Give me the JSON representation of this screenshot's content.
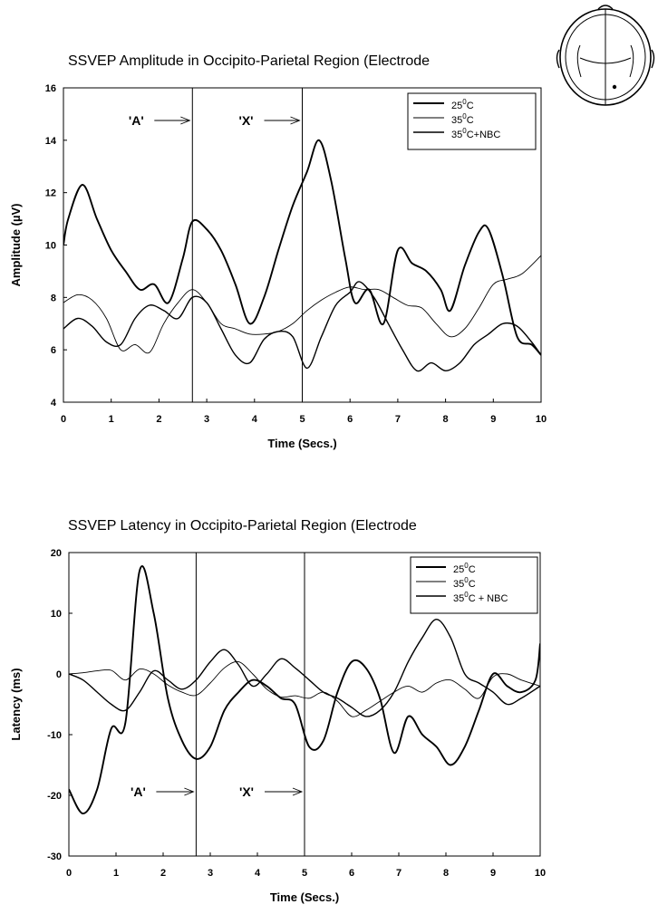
{
  "chart_data": [
    {
      "type": "line",
      "title": "SSVEP Amplitude in Occipito-Parietal Region (Electrode",
      "xlabel": "Time (Secs.)",
      "ylabel": "Amplitude (µV)",
      "xlim": [
        0,
        10
      ],
      "ylim": [
        4,
        16
      ],
      "xticks": [
        "0",
        "1",
        "2",
        "3",
        "4",
        "5",
        "6",
        "7",
        "8",
        "9",
        "10"
      ],
      "yticks": [
        "4",
        "6",
        "8",
        "10",
        "12",
        "14",
        "16"
      ],
      "grid": false,
      "legend_position": "top-right",
      "markers": [
        {
          "label": "'A'",
          "x": 2.7
        },
        {
          "label": "'X'",
          "x": 5.0
        }
      ],
      "series": [
        {
          "name": "25°C",
          "x": [
            0,
            0.1,
            0.4,
            0.7,
            1.0,
            1.3,
            1.6,
            1.9,
            2.2,
            2.5,
            2.7,
            3.0,
            3.3,
            3.6,
            3.9,
            4.2,
            4.5,
            4.8,
            5.1,
            5.35,
            5.6,
            5.9,
            6.1,
            6.4,
            6.7,
            7.0,
            7.3,
            7.6,
            7.9,
            8.1,
            8.4,
            8.7,
            8.9,
            9.2,
            9.5,
            9.8,
            10.0
          ],
          "y": [
            10.0,
            11.0,
            12.3,
            11.0,
            9.8,
            9.0,
            8.3,
            8.5,
            7.8,
            9.5,
            10.9,
            10.6,
            9.8,
            8.5,
            7.0,
            8.0,
            9.8,
            11.5,
            12.8,
            14.0,
            12.5,
            9.5,
            7.8,
            8.3,
            7.0,
            9.8,
            9.3,
            9.0,
            8.3,
            7.5,
            9.2,
            10.5,
            10.6,
            8.8,
            6.5,
            6.2,
            5.8
          ]
        },
        {
          "name": "35°C",
          "x": [
            0,
            0.3,
            0.6,
            0.9,
            1.2,
            1.5,
            1.8,
            2.1,
            2.4,
            2.7,
            3.0,
            3.3,
            3.6,
            3.9,
            4.2,
            4.5,
            4.8,
            5.1,
            5.4,
            5.7,
            6.0,
            6.3,
            6.6,
            6.9,
            7.2,
            7.5,
            7.8,
            8.1,
            8.4,
            8.7,
            9.0,
            9.3,
            9.6,
            10.0
          ],
          "y": [
            7.8,
            8.1,
            7.9,
            7.2,
            6.0,
            6.2,
            5.9,
            7.0,
            7.8,
            8.3,
            7.8,
            7.0,
            6.8,
            6.6,
            6.6,
            6.7,
            7.0,
            7.5,
            7.9,
            8.2,
            8.4,
            8.3,
            8.3,
            8.0,
            7.7,
            7.6,
            7.0,
            6.5,
            6.8,
            7.6,
            8.5,
            8.7,
            8.9,
            9.6
          ]
        },
        {
          "name": "35°C+NBC",
          "x": [
            0,
            0.3,
            0.6,
            0.9,
            1.2,
            1.5,
            1.8,
            2.1,
            2.4,
            2.7,
            3.0,
            3.3,
            3.6,
            3.9,
            4.2,
            4.5,
            4.8,
            5.1,
            5.4,
            5.7,
            6.0,
            6.2,
            6.5,
            6.8,
            7.1,
            7.4,
            7.7,
            8.0,
            8.3,
            8.6,
            8.9,
            9.2,
            9.5,
            9.8,
            10.0
          ],
          "y": [
            6.8,
            7.2,
            6.9,
            6.3,
            6.2,
            7.2,
            7.7,
            7.5,
            7.2,
            8.0,
            7.8,
            6.8,
            5.8,
            5.5,
            6.4,
            6.7,
            6.5,
            5.3,
            6.5,
            7.7,
            8.2,
            8.6,
            8.0,
            7.0,
            6.0,
            5.2,
            5.5,
            5.2,
            5.5,
            6.2,
            6.6,
            7.0,
            6.9,
            6.3,
            5.8
          ]
        }
      ]
    },
    {
      "type": "line",
      "title": "SSVEP Latency in Occipito-Parietal Region (Electrode",
      "xlabel": "Time (Secs.)",
      "ylabel": "Latency (ms)",
      "xlim": [
        0,
        10
      ],
      "ylim": [
        -30,
        20
      ],
      "xticks": [
        "0",
        "1",
        "2",
        "3",
        "4",
        "5",
        "6",
        "7",
        "8",
        "9",
        "10"
      ],
      "yticks": [
        "-30",
        "-20",
        "-10",
        "0",
        "10",
        "20"
      ],
      "grid": false,
      "legend_position": "top-right",
      "markers": [
        {
          "label": "'A'",
          "x": 2.7
        },
        {
          "label": "'X'",
          "x": 5.0
        }
      ],
      "series": [
        {
          "name": "25°C",
          "x": [
            0,
            0.3,
            0.6,
            0.9,
            1.2,
            1.5,
            1.8,
            2.1,
            2.4,
            2.7,
            3.0,
            3.3,
            3.6,
            3.9,
            4.2,
            4.5,
            4.8,
            5.1,
            5.4,
            5.7,
            6.0,
            6.3,
            6.6,
            6.9,
            7.2,
            7.5,
            7.8,
            8.1,
            8.4,
            8.7,
            9.0,
            9.3,
            9.6,
            9.9,
            10.0
          ],
          "y": [
            -19.0,
            -23.0,
            -19.0,
            -9.0,
            -8.0,
            17.0,
            10.0,
            -4.0,
            -11.0,
            -14.0,
            -12.0,
            -6.0,
            -3.0,
            -1.0,
            -2.0,
            -4.0,
            -5.0,
            -12.0,
            -11.0,
            -3.0,
            2.0,
            1.0,
            -4.0,
            -13.0,
            -7.0,
            -10.0,
            -12.0,
            -15.0,
            -12.0,
            -6.0,
            0.0,
            -2.0,
            -3.0,
            -1.0,
            5.0
          ]
        },
        {
          "name": "35°C",
          "x": [
            0,
            0.3,
            0.6,
            0.9,
            1.2,
            1.5,
            1.8,
            2.1,
            2.4,
            2.7,
            3.0,
            3.3,
            3.6,
            3.9,
            4.2,
            4.5,
            4.8,
            5.1,
            5.4,
            5.7,
            6.0,
            6.3,
            6.6,
            6.9,
            7.2,
            7.5,
            7.8,
            8.1,
            8.4,
            8.7,
            9.0,
            9.3,
            9.6,
            10.0
          ],
          "y": [
            0.0,
            0.2,
            0.5,
            0.6,
            -1.0,
            0.8,
            0.0,
            -1.8,
            -3.0,
            -3.5,
            -1.5,
            1.0,
            2.0,
            0.0,
            -2.5,
            -3.8,
            -3.6,
            -4.0,
            -3.0,
            -4.5,
            -7.0,
            -6.0,
            -4.5,
            -3.0,
            -2.0,
            -3.0,
            -1.5,
            -1.0,
            -2.5,
            -4.0,
            -0.5,
            0.0,
            -1.0,
            -2.0
          ]
        },
        {
          "name": "35°C + NBC",
          "x": [
            0,
            0.3,
            0.6,
            0.9,
            1.2,
            1.5,
            1.8,
            2.1,
            2.4,
            2.7,
            3.0,
            3.3,
            3.6,
            3.9,
            4.2,
            4.5,
            4.8,
            5.1,
            5.4,
            5.7,
            6.0,
            6.3,
            6.6,
            6.9,
            7.2,
            7.5,
            7.8,
            8.1,
            8.4,
            8.7,
            9.0,
            9.3,
            9.6,
            10.0
          ],
          "y": [
            0.0,
            -1.0,
            -3.0,
            -5.0,
            -6.0,
            -3.0,
            0.5,
            -1.0,
            -2.5,
            -1.0,
            2.0,
            4.0,
            1.5,
            -2.0,
            0.0,
            2.5,
            1.0,
            -1.0,
            -3.0,
            -4.0,
            -5.5,
            -7.0,
            -6.0,
            -3.0,
            2.0,
            6.0,
            9.0,
            6.0,
            0.0,
            -1.5,
            -3.0,
            -5.0,
            -4.0,
            -2.0
          ]
        }
      ]
    }
  ]
}
